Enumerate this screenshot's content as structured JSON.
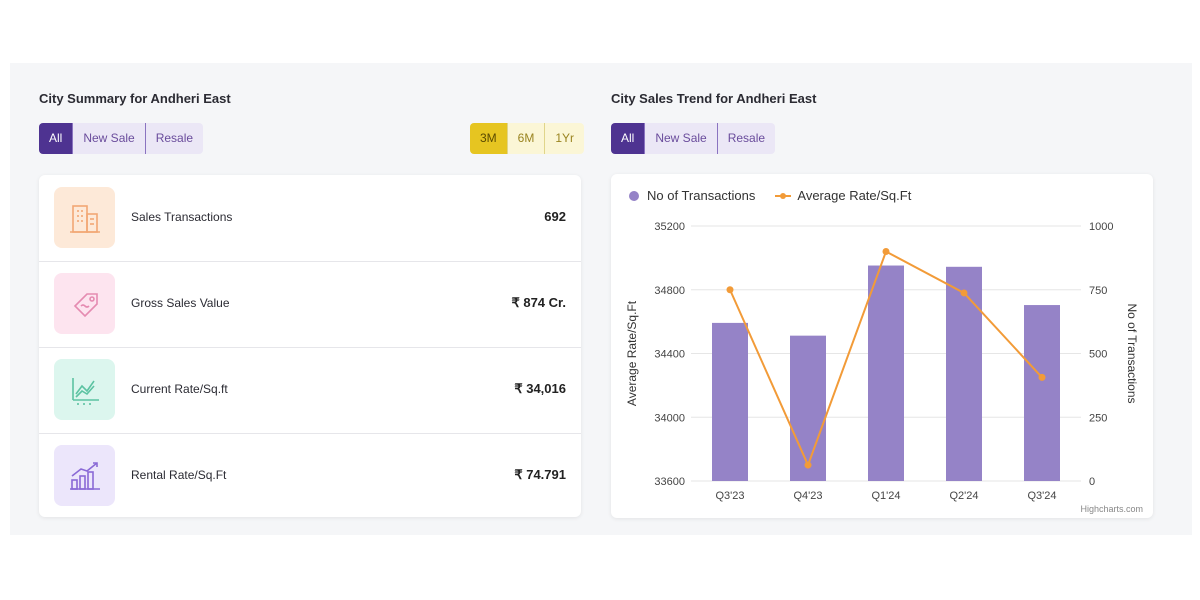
{
  "summary": {
    "title": "City Summary for Andheri East",
    "type_tabs": [
      "All",
      "New Sale",
      "Resale"
    ],
    "period_tabs": [
      "3M",
      "6M",
      "1Yr"
    ],
    "stats": [
      {
        "label": "Sales Transactions",
        "value": "692",
        "icon": "building-icon"
      },
      {
        "label": "Gross Sales Value",
        "value": "₹ 874 Cr.",
        "icon": "price-tag-icon"
      },
      {
        "label": "Current Rate/Sq.ft",
        "value": "₹ 34,016",
        "icon": "line-chart-icon"
      },
      {
        "label": "Rental Rate/Sq.Ft",
        "value": "₹ 74.791",
        "icon": "bar-growth-icon"
      }
    ]
  },
  "trend": {
    "title": "City Sales Trend for Andheri East",
    "type_tabs": [
      "All",
      "New Sale",
      "Resale"
    ],
    "credits": "Highcharts.com"
  },
  "colors": {
    "accent": "#4e3391",
    "bar": "#9583c7",
    "line": "#f29b38",
    "period_active": "#e6c521"
  },
  "chart_data": {
    "type": "bar",
    "categories": [
      "Q3'23",
      "Q4'23",
      "Q1'24",
      "Q2'24",
      "Q3'24"
    ],
    "series": [
      {
        "name": "No of Transactions",
        "type": "bar",
        "axis": "right",
        "values": [
          620,
          570,
          845,
          840,
          690
        ]
      },
      {
        "name": "Average Rate/Sq.Ft",
        "type": "line",
        "axis": "left",
        "values": [
          34800,
          33700,
          35040,
          34780,
          34250
        ]
      }
    ],
    "ylabel_left": "Average Rate/Sq.Ft",
    "ylabel_right": "No of Transactions",
    "ylim_left": [
      33600,
      35200
    ],
    "yticks_left": [
      33600,
      34000,
      34400,
      34800,
      35200
    ],
    "ylim_right": [
      0,
      1000
    ],
    "yticks_right": [
      0,
      250,
      500,
      750,
      1000
    ],
    "legend": "top-left",
    "grid": true
  }
}
